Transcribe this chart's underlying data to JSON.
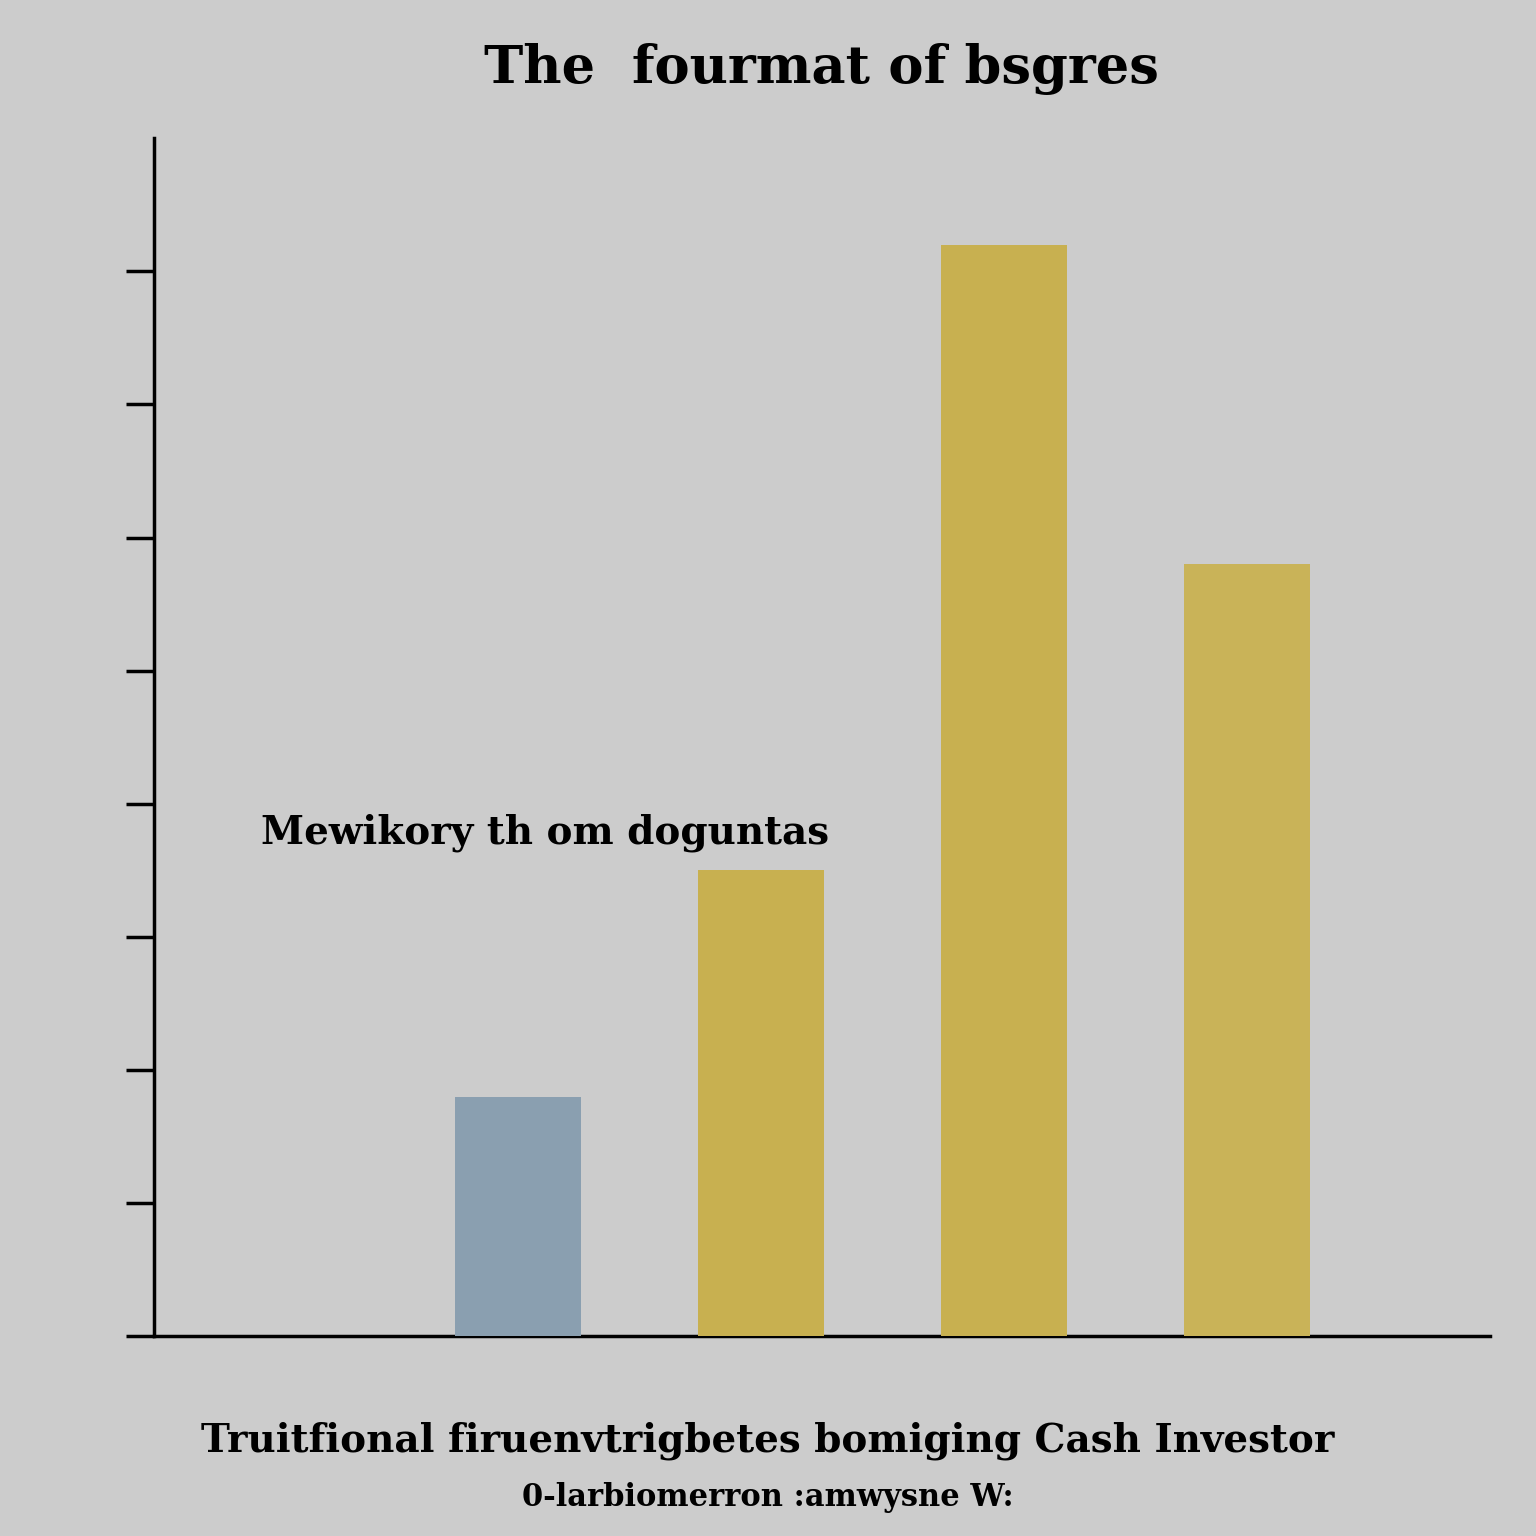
{
  "title": "The  fourmat of bsgres",
  "values": [
    18,
    35,
    82,
    58
  ],
  "bar_colors": [
    "#8a9fb0",
    "#c8b050",
    "#c8b050",
    "#c9b358"
  ],
  "inplot_label": "Mewikory th om doguntas",
  "xlabel_line1": "Truitfional firuenvtrigbetes bomiging Cash Investor",
  "xlabel_line2": "0-larbiomerron :amwysne W:",
  "background_color": "#cccccc",
  "ylim": [
    0,
    90
  ],
  "bar_width": 0.52,
  "title_fontsize": 38,
  "inplot_label_fontsize": 28,
  "xlabel_fontsize": 28,
  "xlabel2_fontsize": 22,
  "ytick_count": 9,
  "ytick_max": 80
}
